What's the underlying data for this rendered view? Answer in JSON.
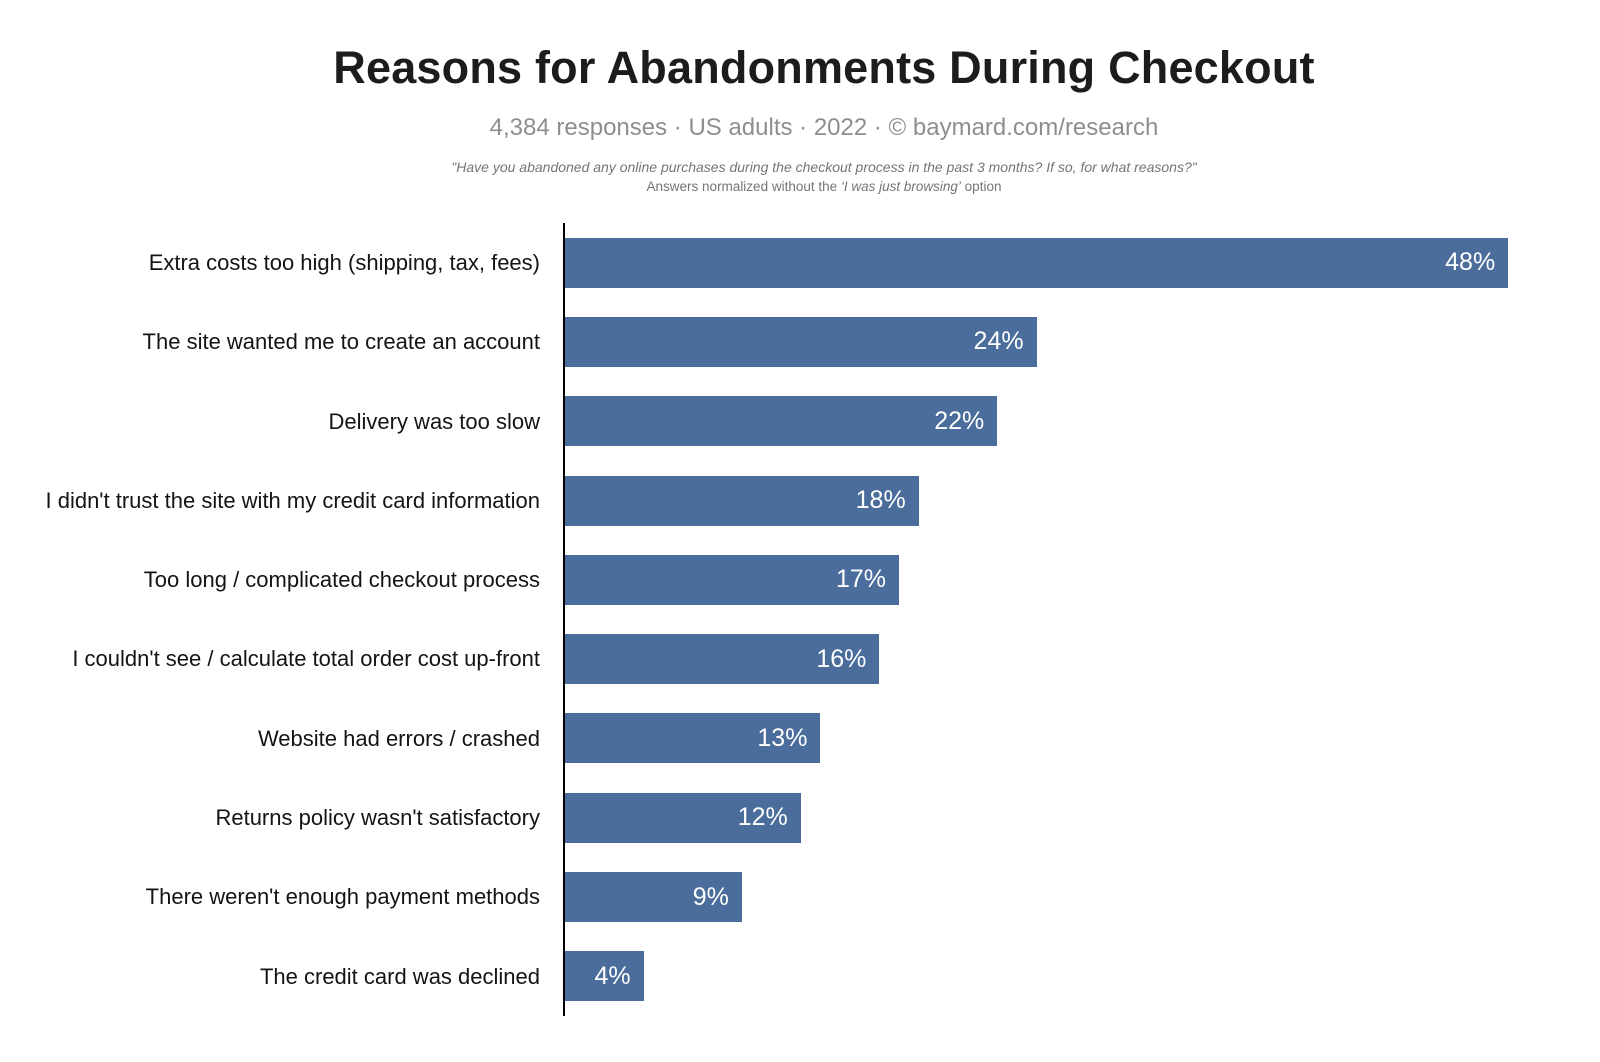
{
  "chart_data": {
    "type": "bar",
    "orientation": "horizontal",
    "title": "Reasons for Abandonments During Checkout",
    "subtitle": "4,384 responses · US adults · 2022 · © baymard.com/research",
    "note_line1": "\"Have you abandoned any online purchases during the checkout process in the past 3 months? If so, for what reasons?\"",
    "note_line2_prefix": "Answers normalized without the ",
    "note_line2_italic": "‘I was just browsing’",
    "note_line2_suffix": " option",
    "categories": [
      "Extra costs too high (shipping, tax, fees)",
      "The site wanted me to create an account",
      "Delivery was too slow",
      "I didn't trust the site with my credit card information",
      "Too long / complicated checkout process",
      "I couldn't see / calculate total order cost up-front",
      "Website had errors / crashed",
      "Returns policy wasn't satisfactory",
      "There weren't enough payment methods",
      "The credit card was declined"
    ],
    "values": [
      48,
      24,
      22,
      18,
      17,
      16,
      13,
      12,
      9,
      4
    ],
    "value_suffix": "%",
    "xlim": [
      0,
      50
    ],
    "grid": false,
    "legend": false,
    "bar_color": "#4a6d9c",
    "value_label_color": "#ffffff",
    "axis_line_color": "#000000"
  }
}
